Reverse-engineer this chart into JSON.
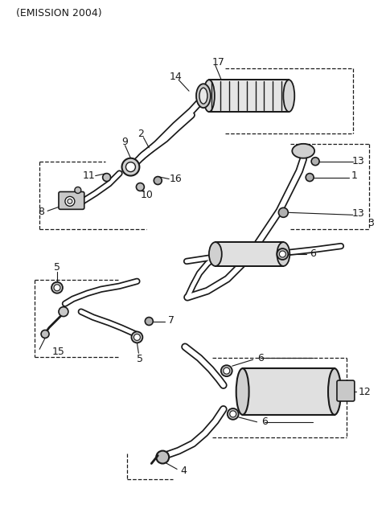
{
  "title": "(EMISSION 2004)",
  "bg_color": "#ffffff",
  "lc": "#1a1a1a",
  "figsize": [
    4.8,
    6.38
  ],
  "dpi": 100
}
